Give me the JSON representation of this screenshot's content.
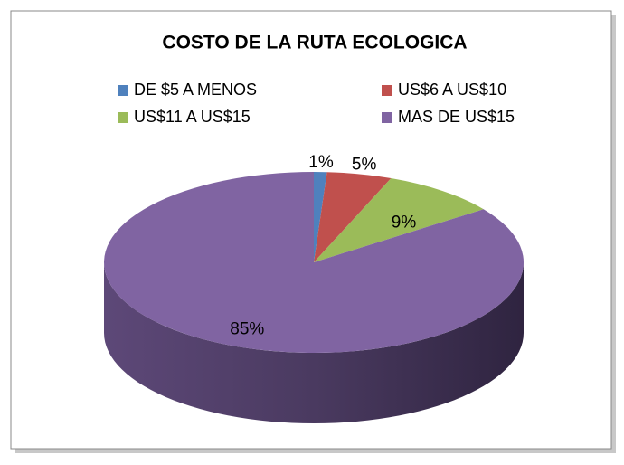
{
  "chart_data": {
    "type": "pie",
    "title": "COSTO DE LA RUTA ECOLOGICA",
    "categories": [
      "DE $5 A MENOS",
      "US$6 A US$10",
      "US$11 A US$15",
      "MAS DE US$15"
    ],
    "values": [
      1,
      5,
      9,
      85
    ],
    "value_labels": [
      "1%",
      "5%",
      "9%",
      "85%"
    ],
    "colors": [
      "#4f81bd",
      "#c0504d",
      "#9bbb59",
      "#8064a2"
    ],
    "legend": "top"
  }
}
